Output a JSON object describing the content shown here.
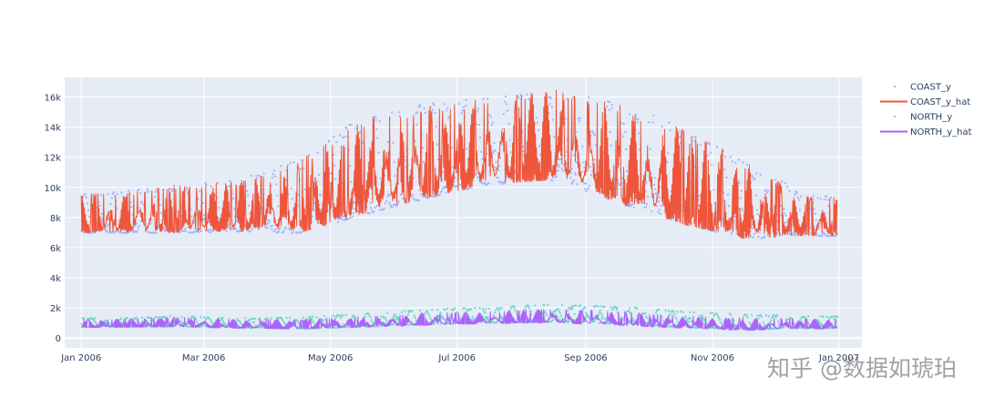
{
  "chart_data": {
    "type": "line",
    "title": "",
    "xlabel": "",
    "ylabel": "",
    "xlim": [
      "2005-12-24",
      "2007-01-12"
    ],
    "ylim": [
      -650,
      17300
    ],
    "x_ticks": [
      "Jan 2006",
      "Mar 2006",
      "May 2006",
      "Jul 2006",
      "Sep 2006",
      "Nov 2006",
      "Jan 2007"
    ],
    "x_tick_dates": [
      "2006-01-01",
      "2006-03-01",
      "2006-05-01",
      "2006-07-01",
      "2006-09-01",
      "2006-11-01",
      "2007-01-01"
    ],
    "y_ticks": [
      0,
      2000,
      4000,
      6000,
      8000,
      10000,
      12000,
      14000,
      16000
    ],
    "y_tick_labels": [
      "0",
      "2k",
      "4k",
      "6k",
      "8k",
      "10k",
      "12k",
      "14k",
      "16k"
    ],
    "grid": true,
    "legend_position": "top-right",
    "time_range": [
      "2006-01-01",
      "2006-12-31"
    ],
    "series": [
      {
        "name": "COAST_y",
        "mode": "markers",
        "color": "#a7b4fc",
        "envelope": {
          "months": [
            "Jan",
            "Feb",
            "Mar",
            "Apr",
            "May",
            "Jun",
            "Jul",
            "Aug",
            "Sep",
            "Oct",
            "Nov",
            "Dec"
          ],
          "low": [
            7000,
            7000,
            7100,
            7000,
            8200,
            9300,
            10200,
            10500,
            9000,
            7600,
            6600,
            6800
          ],
          "high": [
            9700,
            10200,
            10500,
            11900,
            14800,
            15600,
            16000,
            16600,
            15600,
            14200,
            11800,
            9500
          ]
        }
      },
      {
        "name": "COAST_y_hat",
        "mode": "lines",
        "color": "#ef553b",
        "envelope": {
          "months": [
            "Jan",
            "Feb",
            "Mar",
            "Apr",
            "May",
            "Jun",
            "Jul",
            "Aug",
            "Sep",
            "Oct",
            "Nov",
            "Dec"
          ],
          "low": [
            7000,
            7000,
            7100,
            7000,
            8200,
            9300,
            10200,
            10500,
            9000,
            7600,
            6600,
            6800
          ],
          "high": [
            9600,
            10100,
            10400,
            11800,
            14600,
            15400,
            15900,
            16500,
            15500,
            14100,
            11700,
            9400
          ]
        }
      },
      {
        "name": "NORTH_y",
        "mode": "markers",
        "color": "#6fd8c6",
        "envelope": {
          "months": [
            "Jan",
            "Feb",
            "Mar",
            "Apr",
            "May",
            "Jun",
            "Jul",
            "Aug",
            "Sep",
            "Oct",
            "Nov",
            "Dec"
          ],
          "low": [
            750,
            800,
            700,
            650,
            750,
            950,
            1050,
            1100,
            950,
            750,
            600,
            700
          ],
          "high": [
            1350,
            1500,
            1350,
            1400,
            1650,
            1950,
            2050,
            2300,
            2150,
            1800,
            1600,
            1500
          ]
        }
      },
      {
        "name": "NORTH_y_hat",
        "mode": "lines",
        "color": "#ab63fa",
        "envelope": {
          "months": [
            "Jan",
            "Feb",
            "Mar",
            "Apr",
            "May",
            "Jun",
            "Jul",
            "Aug",
            "Sep",
            "Oct",
            "Nov",
            "Dec"
          ],
          "low": [
            700,
            750,
            650,
            600,
            700,
            850,
            950,
            1000,
            850,
            650,
            500,
            600
          ],
          "high": [
            1250,
            1400,
            1250,
            1250,
            1450,
            1700,
            1750,
            1950,
            1800,
            1500,
            1350,
            1300
          ]
        }
      }
    ]
  },
  "watermark": "知乎 @数据如琥珀"
}
